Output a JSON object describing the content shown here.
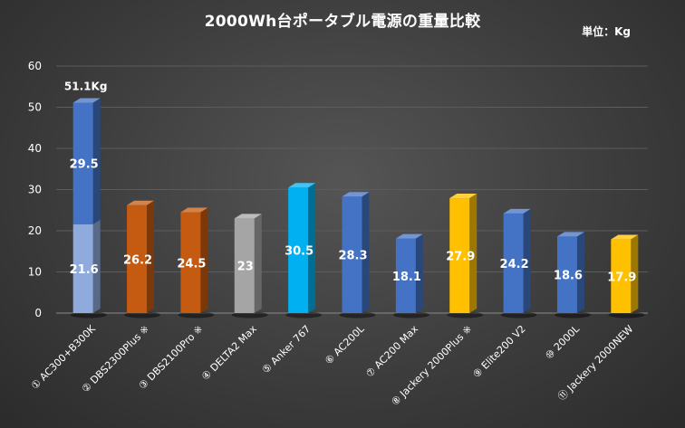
{
  "title": "2000Wh台ポータブル電源の重量比較",
  "unit_label": "単位：Kg",
  "chart_data": {
    "type": "bar",
    "stacked_first_bar": true,
    "title": "2000Wh台ポータブル電源の重量比較",
    "unit": "Kg",
    "ylim": [
      0,
      60
    ],
    "yticks": [
      0,
      10,
      20,
      30,
      40,
      50,
      60
    ],
    "grid": true,
    "categories": [
      "① AC300+B300K",
      "② DBS2300Plus ※",
      "③ DBS2100Pro ※",
      "④ DELTA2 Max",
      "⑤ Anker 767",
      "⑥ AC200L",
      "⑦ AC200 Max",
      "⑧ Jackery 2000Plus ※",
      "⑨ Elite200 V2",
      "⑩ 2000L",
      "⑪ Jackery 2000NEW"
    ],
    "bars": [
      {
        "segments": [
          {
            "value": 21.6,
            "label": "21.6",
            "color": "#8faadc"
          },
          {
            "value": 29.5,
            "label": "29.5",
            "color": "#4472c4"
          }
        ],
        "total_label": "51.1Kg"
      },
      {
        "segments": [
          {
            "value": 26.2,
            "label": "26.2",
            "color": "#c55a11"
          }
        ]
      },
      {
        "segments": [
          {
            "value": 24.5,
            "label": "24.5",
            "color": "#c55a11"
          }
        ]
      },
      {
        "segments": [
          {
            "value": 23,
            "label": "23",
            "color": "#a5a5a5"
          }
        ]
      },
      {
        "segments": [
          {
            "value": 30.5,
            "label": "30.5",
            "color": "#00b0f0"
          }
        ]
      },
      {
        "segments": [
          {
            "value": 28.3,
            "label": "28.3",
            "color": "#4472c4"
          }
        ]
      },
      {
        "segments": [
          {
            "value": 18.1,
            "label": "18.1",
            "color": "#4472c4"
          }
        ]
      },
      {
        "segments": [
          {
            "value": 27.9,
            "label": "27.9",
            "color": "#ffc000"
          }
        ]
      },
      {
        "segments": [
          {
            "value": 24.2,
            "label": "24.2",
            "color": "#4472c4"
          }
        ]
      },
      {
        "segments": [
          {
            "value": 18.6,
            "label": "18.6",
            "color": "#4472c4"
          }
        ]
      },
      {
        "segments": [
          {
            "value": 17.9,
            "label": "17.9",
            "color": "#ffc000"
          }
        ]
      }
    ]
  }
}
